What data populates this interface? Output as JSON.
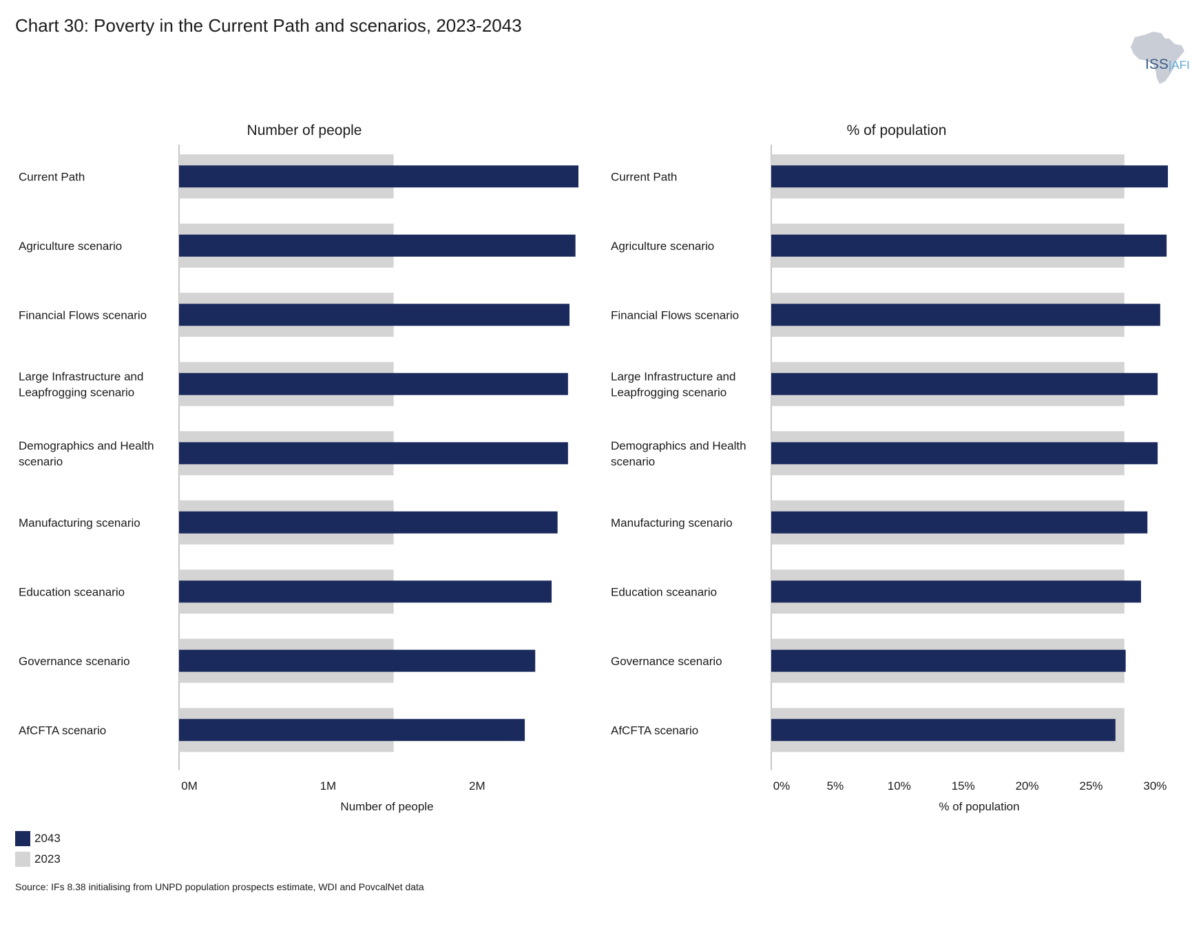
{
  "title": "Chart 30: Poverty in the Current Path and scenarios, 2023-2043",
  "logo": {
    "main": "ISS",
    "sub": "AFI",
    "icon": "africa-map-icon"
  },
  "colors": {
    "y2043": "#1b2a5c",
    "y2023": "#d4d4d4",
    "axis": "#8c8c8c"
  },
  "legend": [
    {
      "label": "2043",
      "color": "#1b2a5c"
    },
    {
      "label": "2023",
      "color": "#d4d4d4"
    }
  ],
  "source": "Source: IFs 8.38 initialising from UNPD population prospects estimate, WDI and PovcalNet data",
  "chart_data": [
    {
      "type": "bar",
      "orientation": "horizontal",
      "title": "Number of people",
      "xlabel": "Number of people",
      "ylabel": "",
      "xlim": [
        0,
        2.68
      ],
      "ticks": [
        0,
        1,
        2
      ],
      "tick_labels": [
        "0M",
        "1M",
        "2M"
      ],
      "categories": [
        "Current Path",
        "Agriculture scenario",
        "Financial Flows scenario",
        "Large Infrastructure and Leapfrogging scenario",
        "Demographics and Health scenario",
        "Manufacturing scenario",
        "Education sceanario",
        "Governance scenario",
        "AfCFTA scenario"
      ],
      "series": [
        {
          "name": "2023",
          "values": [
            1.44,
            1.44,
            1.44,
            1.44,
            1.44,
            1.44,
            1.44,
            1.44,
            1.44
          ]
        },
        {
          "name": "2043",
          "values": [
            2.68,
            2.66,
            2.62,
            2.61,
            2.61,
            2.54,
            2.5,
            2.39,
            2.32
          ]
        }
      ]
    },
    {
      "type": "bar",
      "orientation": "horizontal",
      "title": "% of population",
      "xlabel": "% of population",
      "ylabel": "",
      "xlim": [
        0,
        31
      ],
      "ticks": [
        0,
        5,
        10,
        15,
        20,
        25,
        30
      ],
      "tick_labels": [
        "0%",
        "5%",
        "10%",
        "15%",
        "20%",
        "25%",
        "30%"
      ],
      "categories": [
        "Current Path",
        "Agriculture scenario",
        "Financial Flows scenario",
        "Large Infrastructure and Leapfrogging scenario",
        "Demographics and Health scenario",
        "Manufacturing scenario",
        "Education sceanario",
        "Governance scenario",
        "AfCFTA scenario"
      ],
      "series": [
        {
          "name": "2023",
          "values": [
            27.6,
            27.6,
            27.6,
            27.6,
            27.6,
            27.6,
            27.6,
            27.6,
            27.6
          ]
        },
        {
          "name": "2043",
          "values": [
            31.0,
            30.9,
            30.4,
            30.2,
            30.2,
            29.4,
            28.9,
            27.7,
            26.9
          ]
        }
      ]
    }
  ]
}
